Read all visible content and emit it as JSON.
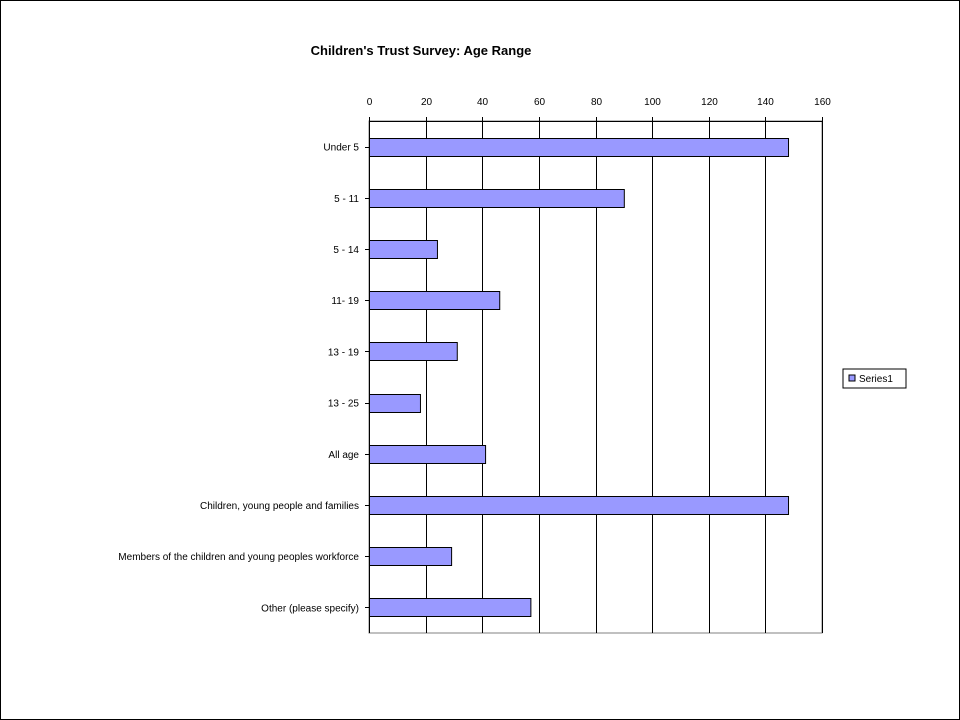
{
  "chart_data": {
    "type": "bar",
    "orientation": "horizontal",
    "title": "Children's Trust Survey: Age Range",
    "xlabel": "",
    "ylabel": "",
    "xlim": [
      0,
      160
    ],
    "ticks": [
      "0",
      "20",
      "40",
      "60",
      "80",
      "100",
      "120",
      "140",
      "160"
    ],
    "tick_values": [
      0,
      20,
      40,
      60,
      80,
      100,
      120,
      140,
      160
    ],
    "grid": true,
    "axis_position": "top",
    "categories": [
      "Under 5",
      "5 - 11",
      "5 - 14",
      "11- 19",
      "13 - 19",
      "13 - 25",
      "All age",
      "Children, young people and families",
      "Members of the children and young peoples workforce",
      "Other (please specify)"
    ],
    "series": [
      {
        "name": "Series1",
        "values": [
          148,
          90,
          24,
          46,
          31,
          18,
          41,
          148,
          29,
          57
        ],
        "color": "#9999ff"
      }
    ],
    "legend": {
      "position": "right",
      "entries": [
        "Series1"
      ]
    }
  }
}
